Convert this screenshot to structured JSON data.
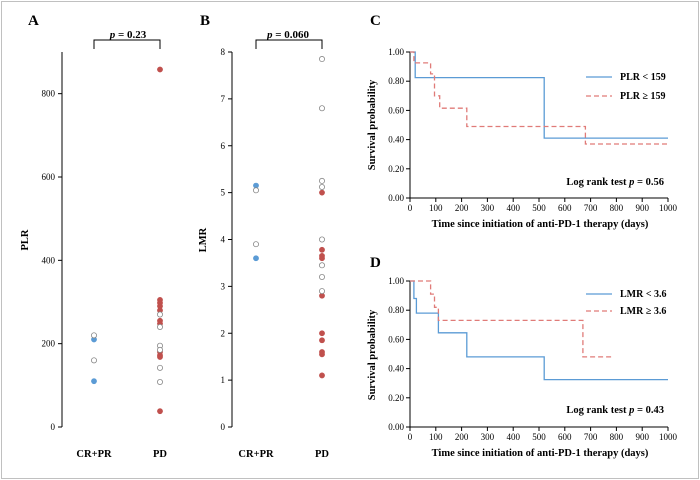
{
  "colors": {
    "blue": "#5b9bd5",
    "red": "#c0504d",
    "red_dash": "#e07b78",
    "open": "#888888",
    "axis": "#000000",
    "frame": "#c0c0c0"
  },
  "chart_data": [
    {
      "panel": "A",
      "type": "scatter",
      "ylabel": "PLR",
      "categories": [
        "CR+PR",
        "PD"
      ],
      "ylim": [
        0,
        900
      ],
      "yticks": [
        0,
        200,
        400,
        600,
        800
      ],
      "significance": {
        "p_symbol": "p",
        "p_value": " = 0.23"
      },
      "series": [
        {
          "category": "CR+PR",
          "filled": true,
          "color": "blue",
          "values": [
            210,
            110
          ]
        },
        {
          "category": "CR+PR",
          "filled": false,
          "color": "open",
          "values": [
            220,
            160
          ]
        },
        {
          "category": "PD",
          "filled": true,
          "color": "red",
          "values": [
            858,
            305,
            298,
            290,
            280,
            255,
            248,
            180,
            172,
            168,
            38
          ]
        },
        {
          "category": "PD",
          "filled": false,
          "color": "open",
          "values": [
            270,
            240,
            195,
            185,
            142,
            108
          ]
        }
      ]
    },
    {
      "panel": "B",
      "type": "scatter",
      "ylabel": "LMR",
      "categories": [
        "CR+PR",
        "PD"
      ],
      "ylim": [
        0,
        8
      ],
      "yticks": [
        0,
        1,
        2,
        3,
        4,
        5,
        6,
        7,
        8
      ],
      "significance": {
        "p_symbol": "p",
        "p_value": " = 0.060"
      },
      "series": [
        {
          "category": "CR+PR",
          "filled": true,
          "color": "blue",
          "values": [
            5.15,
            3.6
          ]
        },
        {
          "category": "CR+PR",
          "filled": false,
          "color": "open",
          "values": [
            5.05,
            3.9
          ]
        },
        {
          "category": "PD",
          "filled": true,
          "color": "red",
          "values": [
            5.0,
            3.78,
            3.65,
            3.6,
            2.8,
            2.0,
            1.85,
            1.6,
            1.55,
            1.1
          ]
        },
        {
          "category": "PD",
          "filled": false,
          "color": "open",
          "values": [
            7.85,
            6.8,
            5.25,
            5.12,
            4.0,
            3.45,
            3.2,
            2.9
          ]
        }
      ]
    },
    {
      "panel": "C",
      "type": "line",
      "step": true,
      "xlabel": "Time since initiation of anti-PD-1 therapy (days)",
      "ylabel": "Survival probability",
      "xlim": [
        0,
        1000
      ],
      "xticks": [
        0,
        100,
        200,
        300,
        400,
        500,
        600,
        700,
        800,
        900,
        1000
      ],
      "ylim": [
        0,
        1
      ],
      "yticks": [
        "0.00",
        "0.20",
        "0.40",
        "0.60",
        "0.80",
        "1.00"
      ],
      "legend_position": "top-right",
      "annotation": {
        "prefix": "Log rank test ",
        "p_symbol": "p",
        "p_value": " = 0.56"
      },
      "series": [
        {
          "name": "PLR < 159",
          "color": "blue",
          "dashed": false,
          "points": [
            [
              0,
              1.0
            ],
            [
              20,
              1.0
            ],
            [
              20,
              0.825
            ],
            [
              520,
              0.825
            ],
            [
              520,
              0.41
            ],
            [
              1000,
              0.41
            ]
          ]
        },
        {
          "name": "PLR ≥ 159",
          "color": "red_dash",
          "dashed": true,
          "points": [
            [
              0,
              1.0
            ],
            [
              15,
              1.0
            ],
            [
              15,
              0.925
            ],
            [
              80,
              0.925
            ],
            [
              80,
              0.85
            ],
            [
              95,
              0.85
            ],
            [
              95,
              0.7
            ],
            [
              115,
              0.7
            ],
            [
              115,
              0.615
            ],
            [
              220,
              0.615
            ],
            [
              220,
              0.49
            ],
            [
              680,
              0.49
            ],
            [
              680,
              0.37
            ],
            [
              1000,
              0.37
            ]
          ]
        }
      ]
    },
    {
      "panel": "D",
      "type": "line",
      "step": true,
      "xlabel": "Time since initiation of anti-PD-1 therapy (days)",
      "ylabel": "Survival probability",
      "xlim": [
        0,
        1000
      ],
      "xticks": [
        0,
        100,
        200,
        300,
        400,
        500,
        600,
        700,
        800,
        900,
        1000
      ],
      "ylim": [
        0,
        1
      ],
      "yticks": [
        "0.00",
        "0.20",
        "0.40",
        "0.60",
        "0.80",
        "1.00"
      ],
      "legend_position": "top-right",
      "annotation": {
        "prefix": "Log rank test ",
        "p_symbol": "p",
        "p_value": " = 0.43"
      },
      "series": [
        {
          "name": "LMR < 3.6",
          "color": "blue",
          "dashed": false,
          "points": [
            [
              0,
              1.0
            ],
            [
              15,
              1.0
            ],
            [
              15,
              0.88
            ],
            [
              25,
              0.88
            ],
            [
              25,
              0.78
            ],
            [
              110,
              0.78
            ],
            [
              110,
              0.645
            ],
            [
              220,
              0.645
            ],
            [
              220,
              0.48
            ],
            [
              520,
              0.48
            ],
            [
              520,
              0.325
            ],
            [
              1000,
              0.325
            ]
          ]
        },
        {
          "name": "LMR ≥ 3.6",
          "color": "red_dash",
          "dashed": true,
          "points": [
            [
              0,
              1.0
            ],
            [
              80,
              1.0
            ],
            [
              80,
              0.91
            ],
            [
              95,
              0.91
            ],
            [
              95,
              0.82
            ],
            [
              110,
              0.82
            ],
            [
              110,
              0.73
            ],
            [
              670,
              0.73
            ],
            [
              670,
              0.48
            ],
            [
              785,
              0.48
            ]
          ]
        }
      ]
    }
  ]
}
